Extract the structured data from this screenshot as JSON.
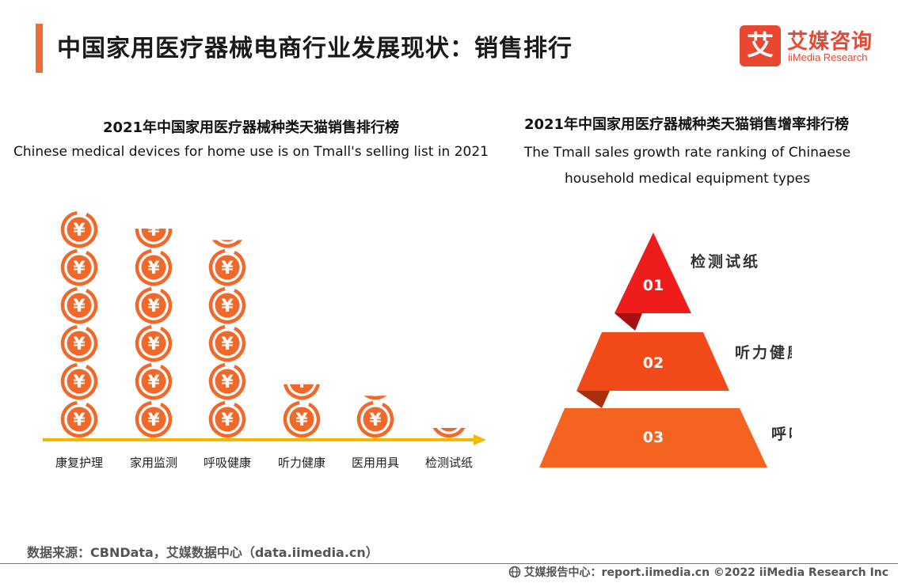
{
  "header": {
    "title": "中国家用医疗器械电商行业发展现状：销售排行"
  },
  "logo": {
    "mark": "艾",
    "name_cn": "艾媒咨询",
    "name_en": "iiMedia Research"
  },
  "left": {
    "title_cn": "2021年中国家用医疗器械种类天猫销售排行榜",
    "title_en": "Chinese medical devices for home use is on Tmall's selling list in 2021"
  },
  "right": {
    "title_cn": "2021年中国家用医疗器械种类天猫销售增率排行榜",
    "title_en_line1": "The Tmall sales growth rate ranking of Chinaese",
    "title_en_line2": "household medical equipment types"
  },
  "colors": {
    "accent": "#f06a35",
    "coin": "#f2682a",
    "axis": "#f5b800",
    "tier1": "#ef1c1c",
    "tier2": "#f24a18",
    "tier3": "#f4631f"
  },
  "chart_data": [
    {
      "type": "bar",
      "title": "2021年中国家用医疗器械种类天猫销售排行榜",
      "categories": [
        "康复护理",
        "家用监测",
        "呼吸健康",
        "听力健康",
        "医用用具",
        "检测试纸"
      ],
      "values": [
        6.0,
        5.5,
        5.2,
        1.4,
        1.1,
        0.25
      ],
      "unit_symbol": "¥"
    },
    {
      "type": "table",
      "title": "2021年中国家用医疗器械种类天猫销售增率排行榜",
      "ranks": [
        "01",
        "02",
        "03"
      ],
      "labels": [
        "检测试纸",
        "听力健康",
        "呼吸健康"
      ]
    }
  ],
  "footer": {
    "source": "数据来源：CBNData，艾媒数据中心（data.iimedia.cn）",
    "copyright": "艾媒报告中心：report.iimedia.cn  ©2022  iiMedia Research  Inc"
  }
}
